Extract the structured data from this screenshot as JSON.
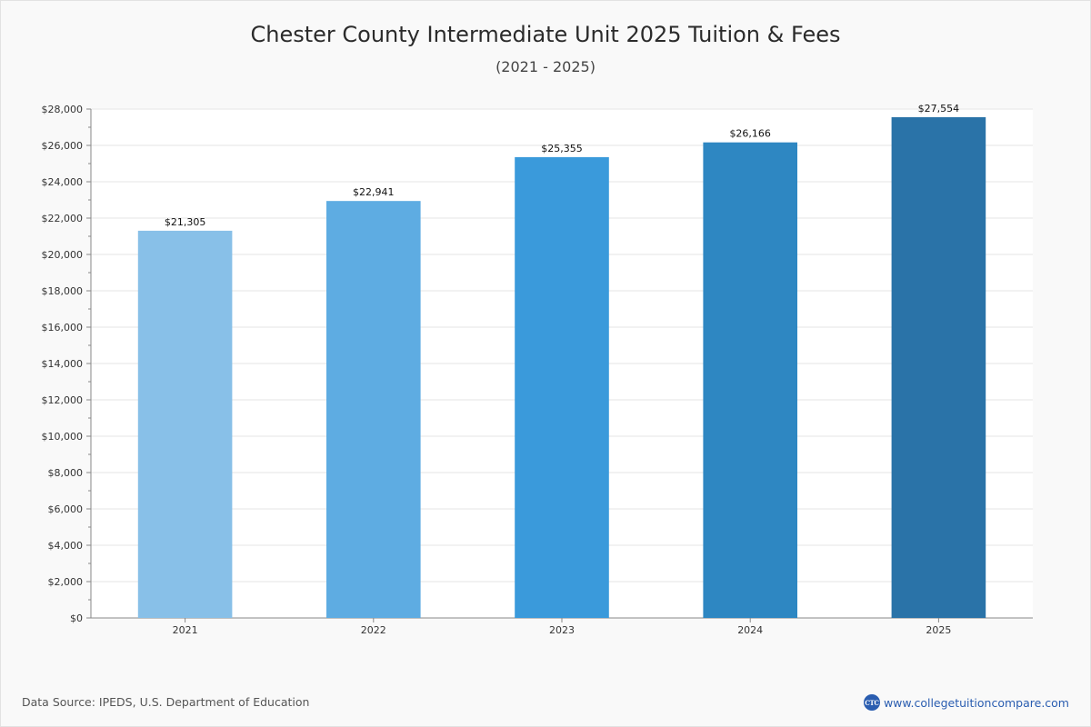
{
  "header": {
    "title": "Chester County Intermediate Unit 2025 Tuition & Fees",
    "subtitle": "(2021 - 2025)"
  },
  "chart_data": {
    "type": "bar",
    "title": "Chester County Intermediate Unit 2025 Tuition & Fees",
    "subtitle": "(2021 - 2025)",
    "categories": [
      "2021",
      "2022",
      "2023",
      "2024",
      "2025"
    ],
    "values": [
      21305,
      22941,
      25355,
      26166,
      27554
    ],
    "value_labels": [
      "$21,305",
      "$22,941",
      "$25,355",
      "$26,166",
      "$27,554"
    ],
    "bar_colors": [
      "#88c0e8",
      "#5eace2",
      "#3a9adb",
      "#2e87c2",
      "#2a73a8"
    ],
    "ylim": [
      0,
      28000
    ],
    "ytick_step": 2000,
    "yticks": [
      "$0",
      "$2,000",
      "$4,000",
      "$6,000",
      "$8,000",
      "$10,000",
      "$12,000",
      "$14,000",
      "$16,000",
      "$18,000",
      "$20,000",
      "$22,000",
      "$24,000",
      "$26,000",
      "$28,000"
    ],
    "xlabel": "",
    "ylabel": "",
    "grid": true,
    "legend": "none"
  },
  "footer": {
    "source": "Data Source: IPEDS, U.S. Department of Education",
    "site": "www.collegetuitioncompare.com",
    "logo_text": "CTC"
  },
  "colors": {
    "grid": "#e6e6e6",
    "axis": "#888888",
    "tick_text": "#333333",
    "plot_bg": "#ffffff",
    "link": "#2a5db0"
  }
}
